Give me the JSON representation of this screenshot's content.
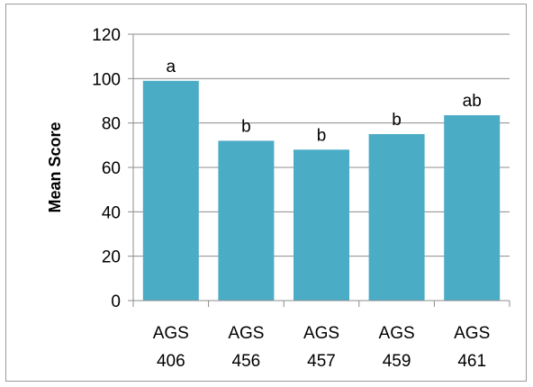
{
  "chart_data": {
    "type": "bar",
    "title": "",
    "xlabel": "",
    "ylabel": "Mean Score",
    "ylim": [
      0,
      120
    ],
    "yticks": [
      0,
      20,
      40,
      60,
      80,
      100,
      120
    ],
    "grid": true,
    "categories": [
      [
        "AGS",
        "406"
      ],
      [
        "AGS",
        "456"
      ],
      [
        "AGS",
        "457"
      ],
      [
        "AGS",
        "459"
      ],
      [
        "AGS",
        "461"
      ]
    ],
    "values": [
      99,
      72,
      68,
      75,
      83.5
    ],
    "data_labels": [
      "a",
      "b",
      "b",
      "b",
      "ab"
    ],
    "colors": {
      "bar": "#4BACC6",
      "grid": "#8c8c8c",
      "axis": "#8c8c8c"
    }
  }
}
